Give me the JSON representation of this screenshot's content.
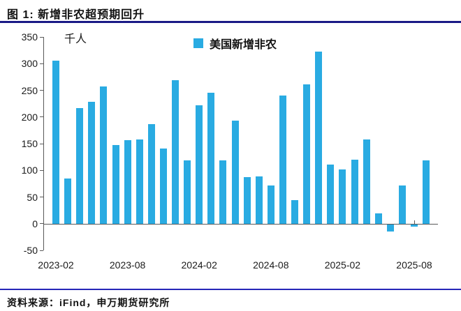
{
  "header": {
    "title": "图 1: 新增非农超预期回升"
  },
  "footer": {
    "source": "资料来源：iFind，申万期货研究所"
  },
  "colors": {
    "bar": "#29ABE2",
    "title_rule": "#1A1A86",
    "footer_rule": "#2626B8",
    "axis": "#595959",
    "tick_text": "#1a1a1a"
  },
  "chart_data": {
    "type": "bar",
    "title": "新增非农超预期回升",
    "unit_label": "千人",
    "legend": {
      "label": "美国新增非农",
      "color": "#29ABE2",
      "position": "top-center"
    },
    "categories": [
      "2023-02",
      "2023-03",
      "2023-04",
      "2023-05",
      "2023-06",
      "2023-07",
      "2023-08",
      "2023-09",
      "2023-10",
      "2023-11",
      "2023-12",
      "2024-01",
      "2024-02",
      "2024-03",
      "2024-04",
      "2024-05",
      "2024-06",
      "2024-07",
      "2024-08",
      "2024-09",
      "2024-10",
      "2024-11",
      "2024-12",
      "2025-01",
      "2025-02",
      "2025-03",
      "2025-04",
      "2025-05",
      "2025-06",
      "2025-07",
      "2025-08",
      "2025-09"
    ],
    "values": [
      306,
      85,
      217,
      228,
      257,
      148,
      157,
      158,
      186,
      141,
      269,
      119,
      222,
      246,
      118,
      193,
      87,
      88,
      71,
      240,
      44,
      261,
      323,
      111,
      102,
      120,
      158,
      19,
      -13,
      72,
      -4,
      119
    ],
    "ylim": [
      -50,
      350
    ],
    "yticks": [
      350,
      300,
      250,
      200,
      150,
      100,
      50,
      0,
      -50
    ],
    "xticks": {
      "indices": [
        0,
        6,
        12,
        18,
        24,
        30
      ],
      "labels": [
        "2023-02",
        "2023-08",
        "2024-02",
        "2024-08",
        "2025-02",
        "2025-08"
      ]
    },
    "grid": false
  }
}
